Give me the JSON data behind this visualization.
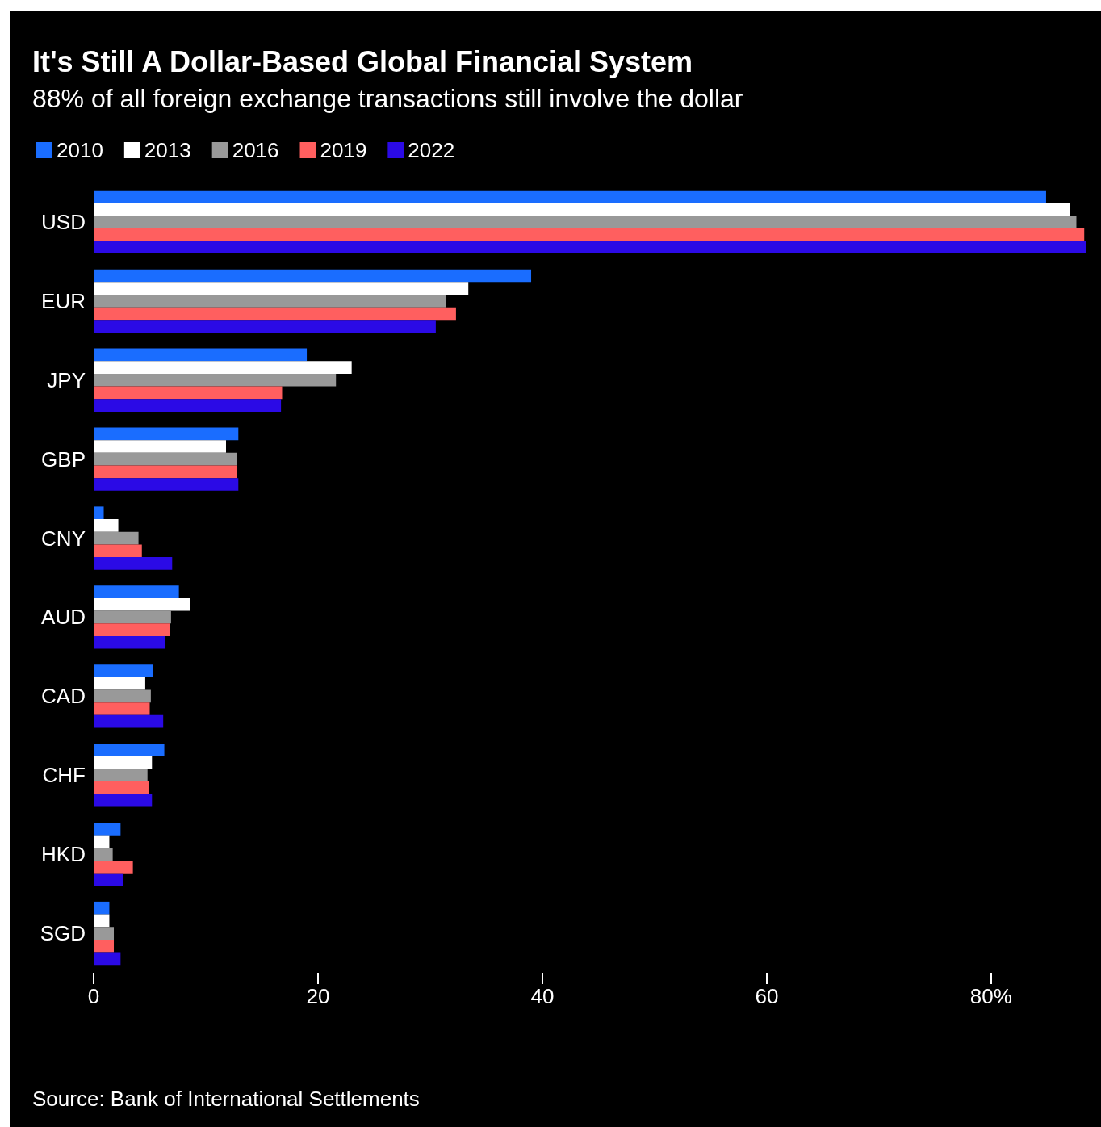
{
  "chart_data": {
    "type": "bar",
    "orientation": "horizontal",
    "title": "It's Still A Dollar-Based Global Financial System",
    "subtitle": "88% of all foreign exchange transactions still involve the dollar",
    "categories": [
      "USD",
      "EUR",
      "JPY",
      "GBP",
      "CNY",
      "AUD",
      "CAD",
      "CHF",
      "HKD",
      "SGD"
    ],
    "series": [
      {
        "name": "2010",
        "color": "#1a6dff",
        "values": [
          84.9,
          39.0,
          19.0,
          12.9,
          0.9,
          7.6,
          5.3,
          6.3,
          2.4,
          1.4
        ]
      },
      {
        "name": "2013",
        "color": "#ffffff",
        "values": [
          87.0,
          33.4,
          23.0,
          11.8,
          2.2,
          8.6,
          4.6,
          5.2,
          1.4,
          1.4
        ]
      },
      {
        "name": "2016",
        "color": "#999999",
        "values": [
          87.6,
          31.4,
          21.6,
          12.8,
          4.0,
          6.9,
          5.1,
          4.8,
          1.7,
          1.8
        ]
      },
      {
        "name": "2019",
        "color": "#ff5f5f",
        "values": [
          88.3,
          32.3,
          16.8,
          12.8,
          4.3,
          6.8,
          5.0,
          4.9,
          3.5,
          1.8
        ]
      },
      {
        "name": "2022",
        "color": "#2b0ae6",
        "values": [
          88.5,
          30.5,
          16.7,
          12.9,
          7.0,
          6.4,
          6.2,
          5.2,
          2.6,
          2.4
        ]
      }
    ],
    "xlim": [
      0,
      88.5
    ],
    "xticks": [
      0,
      20,
      40,
      60,
      {
        "value": 80,
        "label": "80%"
      }
    ],
    "grid": false,
    "legend": "top left",
    "annotations": [
      "Source: Bank of International Settlements"
    ]
  }
}
